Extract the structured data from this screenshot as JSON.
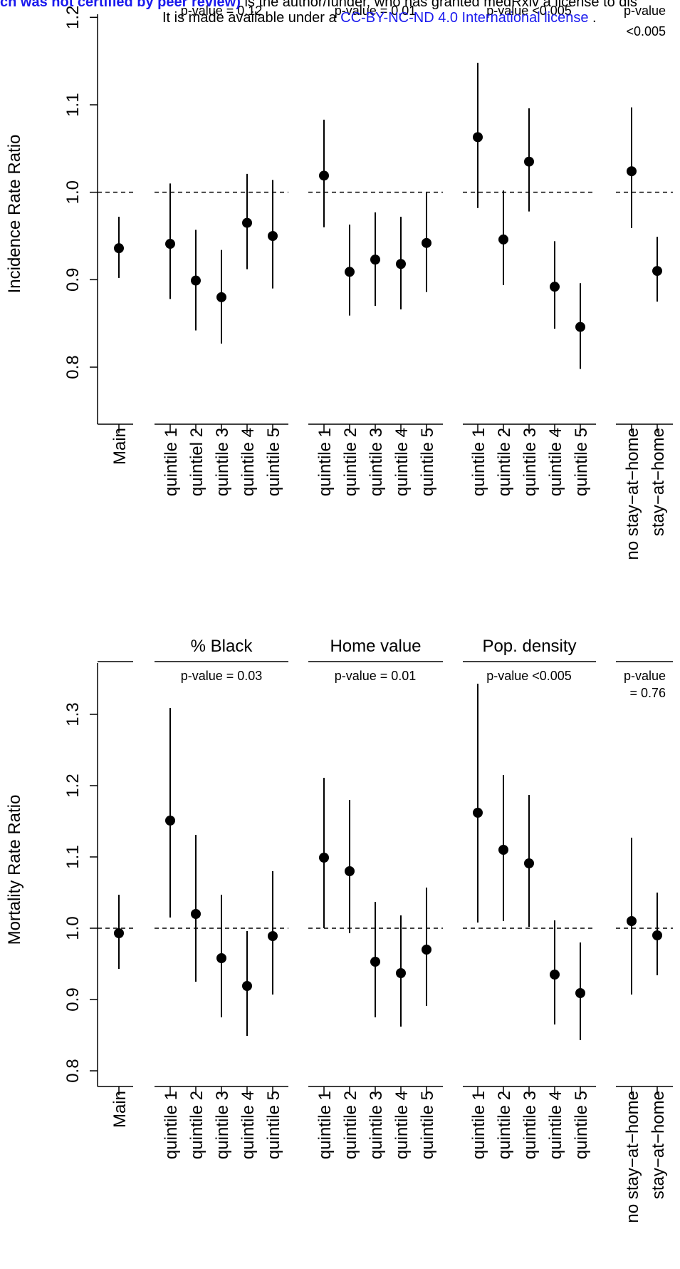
{
  "banner": {
    "part1": "ch was not certified by peer review)",
    "part2": " is the author/funder, who has granted medRxiv a license to dis",
    "line2_prefix": "It is made available under a ",
    "license": "CC-BY-NC-ND 4.0 International license",
    "line2_suffix": " ."
  },
  "chart_data": [
    {
      "type": "scatter",
      "subtype": "point-range",
      "ylabel": "Incidence Rate Ratio",
      "ylim": [
        0.74,
        1.2
      ],
      "yticks": [
        "0.8",
        "0.9",
        "1.0",
        "1.1",
        "1.2"
      ],
      "reference_line": 1.0,
      "group_titles": [
        "",
        "",
        "",
        "",
        ""
      ],
      "pvalue_lines": [
        [],
        [
          "p-value = 0.12"
        ],
        [
          "p-value = 0.01"
        ],
        [
          "p-value <0.005"
        ],
        [
          "p-value",
          "<0.005"
        ]
      ],
      "groups": [
        {
          "categories": [
            "Main"
          ],
          "estimate": [
            0.936
          ],
          "lower": [
            0.902
          ],
          "upper": [
            0.972
          ]
        },
        {
          "categories": [
            "quintile 1",
            "quintiel 2",
            "quintile 3",
            "quintile 4",
            "quintile 5"
          ],
          "estimate": [
            0.941,
            0.899,
            0.88,
            0.965,
            0.95
          ],
          "lower": [
            0.878,
            0.842,
            0.827,
            0.912,
            0.89
          ],
          "upper": [
            1.01,
            0.957,
            0.934,
            1.021,
            1.014
          ]
        },
        {
          "categories": [
            "quintile 1",
            "quintile 2",
            "quintile 3",
            "quintile 4",
            "quintile 5"
          ],
          "estimate": [
            1.019,
            0.909,
            0.923,
            0.918,
            0.942
          ],
          "lower": [
            0.96,
            0.859,
            0.87,
            0.866,
            0.886
          ],
          "upper": [
            1.083,
            0.963,
            0.977,
            0.972,
            1.0
          ]
        },
        {
          "categories": [
            "quintile 1",
            "quintile 2",
            "quintile 3",
            "quintile 4",
            "quintile 5"
          ],
          "estimate": [
            1.063,
            0.946,
            1.035,
            0.892,
            0.846
          ],
          "lower": [
            0.982,
            0.894,
            0.978,
            0.844,
            0.798
          ],
          "upper": [
            1.148,
            1.002,
            1.096,
            0.944,
            0.896
          ]
        },
        {
          "categories": [
            "no stay−at−home",
            "stay−at−home"
          ],
          "estimate": [
            1.024,
            0.91
          ],
          "lower": [
            0.959,
            0.875
          ],
          "upper": [
            1.097,
            0.949
          ]
        }
      ]
    },
    {
      "type": "scatter",
      "subtype": "point-range",
      "ylabel": "Mortality Rate Ratio",
      "ylim": [
        0.78,
        1.37
      ],
      "yticks": [
        "0.8",
        "0.9",
        "1.0",
        "1.1",
        "1.2",
        "1.3"
      ],
      "reference_line": 1.0,
      "group_titles": [
        "",
        "% Black",
        "Home value",
        "Pop. density",
        ""
      ],
      "pvalue_lines": [
        [],
        [
          "p-value = 0.03"
        ],
        [
          "p-value = 0.01"
        ],
        [
          "p-value <0.005"
        ],
        [
          "p-value",
          "= 0.76"
        ]
      ],
      "groups": [
        {
          "categories": [
            "Main"
          ],
          "estimate": [
            0.993
          ],
          "lower": [
            0.943
          ],
          "upper": [
            1.047
          ]
        },
        {
          "categories": [
            "quintile 1",
            "quintile 2",
            "quintile 3",
            "quintile 4",
            "quintile 5"
          ],
          "estimate": [
            1.151,
            1.02,
            0.958,
            0.919,
            0.989
          ],
          "lower": [
            1.015,
            0.925,
            0.875,
            0.849,
            0.907
          ],
          "upper": [
            1.309,
            1.131,
            1.047,
            0.996,
            1.08
          ]
        },
        {
          "categories": [
            "quintile 1",
            "quintile 2",
            "quintile 3",
            "quintile 4",
            "quintile 5"
          ],
          "estimate": [
            1.099,
            1.08,
            0.953,
            0.937,
            0.97
          ],
          "lower": [
            1.0,
            0.993,
            0.875,
            0.862,
            0.891
          ],
          "upper": [
            1.211,
            1.18,
            1.037,
            1.018,
            1.057
          ]
        },
        {
          "categories": [
            "quintile 1",
            "quintile 2",
            "quintile 3",
            "quintile 4",
            "quintile 5"
          ],
          "estimate": [
            1.162,
            1.11,
            1.091,
            0.935,
            0.909
          ],
          "lower": [
            1.008,
            1.01,
            1.002,
            0.865,
            0.843
          ],
          "upper": [
            1.343,
            1.215,
            1.187,
            1.011,
            0.98
          ]
        },
        {
          "categories": [
            "no stay−at−home",
            "stay−at−home"
          ],
          "estimate": [
            1.01,
            0.99
          ],
          "lower": [
            0.907,
            0.934
          ],
          "upper": [
            1.127,
            1.05
          ]
        }
      ]
    }
  ]
}
